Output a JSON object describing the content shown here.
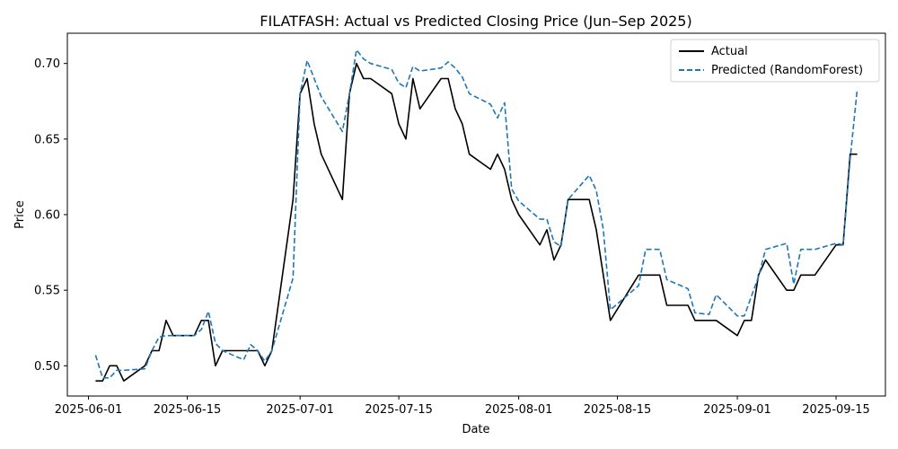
{
  "chart_data": {
    "type": "line",
    "title": "FILATFASH: Actual vs Predicted Closing Price (Jun–Sep 2025)",
    "xlabel": "Date",
    "ylabel": "Price",
    "xlim": [
      "2025-05-29",
      "2025-09-22"
    ],
    "ylim": [
      0.48,
      0.72
    ],
    "x_ticks": [
      "2025-06-01",
      "2025-06-15",
      "2025-07-01",
      "2025-07-15",
      "2025-08-01",
      "2025-08-15",
      "2025-09-01",
      "2025-09-15"
    ],
    "y_ticks": [
      0.5,
      0.55,
      0.6,
      0.65,
      0.7
    ],
    "y_tick_labels": [
      "0.50",
      "0.55",
      "0.60",
      "0.65",
      "0.70"
    ],
    "grid": false,
    "legend_position": "top-right",
    "series": [
      {
        "name": "Actual",
        "color": "#000000",
        "style": "solid",
        "points": [
          [
            "2025-06-02",
            0.49
          ],
          [
            "2025-06-03",
            0.49
          ],
          [
            "2025-06-04",
            0.5
          ],
          [
            "2025-06-05",
            0.5
          ],
          [
            "2025-06-06",
            0.49
          ],
          [
            "2025-06-09",
            0.5
          ],
          [
            "2025-06-10",
            0.51
          ],
          [
            "2025-06-11",
            0.51
          ],
          [
            "2025-06-12",
            0.53
          ],
          [
            "2025-06-13",
            0.52
          ],
          [
            "2025-06-16",
            0.52
          ],
          [
            "2025-06-17",
            0.53
          ],
          [
            "2025-06-18",
            0.53
          ],
          [
            "2025-06-19",
            0.5
          ],
          [
            "2025-06-20",
            0.51
          ],
          [
            "2025-06-23",
            0.51
          ],
          [
            "2025-06-24",
            0.51
          ],
          [
            "2025-06-25",
            0.51
          ],
          [
            "2025-06-26",
            0.5
          ],
          [
            "2025-06-27",
            0.51
          ],
          [
            "2025-06-30",
            0.61
          ],
          [
            "2025-07-01",
            0.68
          ],
          [
            "2025-07-02",
            0.69
          ],
          [
            "2025-07-03",
            0.66
          ],
          [
            "2025-07-04",
            0.64
          ],
          [
            "2025-07-07",
            0.61
          ],
          [
            "2025-07-08",
            0.68
          ],
          [
            "2025-07-09",
            0.7
          ],
          [
            "2025-07-10",
            0.69
          ],
          [
            "2025-07-11",
            0.69
          ],
          [
            "2025-07-14",
            0.68
          ],
          [
            "2025-07-15",
            0.66
          ],
          [
            "2025-07-16",
            0.65
          ],
          [
            "2025-07-17",
            0.69
          ],
          [
            "2025-07-18",
            0.67
          ],
          [
            "2025-07-21",
            0.69
          ],
          [
            "2025-07-22",
            0.69
          ],
          [
            "2025-07-23",
            0.67
          ],
          [
            "2025-07-24",
            0.66
          ],
          [
            "2025-07-25",
            0.64
          ],
          [
            "2025-07-28",
            0.63
          ],
          [
            "2025-07-29",
            0.64
          ],
          [
            "2025-07-30",
            0.63
          ],
          [
            "2025-07-31",
            0.61
          ],
          [
            "2025-08-01",
            0.6
          ],
          [
            "2025-08-04",
            0.58
          ],
          [
            "2025-08-05",
            0.59
          ],
          [
            "2025-08-06",
            0.57
          ],
          [
            "2025-08-07",
            0.58
          ],
          [
            "2025-08-08",
            0.61
          ],
          [
            "2025-08-11",
            0.61
          ],
          [
            "2025-08-12",
            0.59
          ],
          [
            "2025-08-14",
            0.53
          ],
          [
            "2025-08-18",
            0.56
          ],
          [
            "2025-08-19",
            0.56
          ],
          [
            "2025-08-20",
            0.56
          ],
          [
            "2025-08-21",
            0.56
          ],
          [
            "2025-08-22",
            0.54
          ],
          [
            "2025-08-25",
            0.54
          ],
          [
            "2025-08-26",
            0.53
          ],
          [
            "2025-08-27",
            0.53
          ],
          [
            "2025-08-28",
            0.53
          ],
          [
            "2025-08-29",
            0.53
          ],
          [
            "2025-09-01",
            0.52
          ],
          [
            "2025-09-02",
            0.53
          ],
          [
            "2025-09-03",
            0.53
          ],
          [
            "2025-09-04",
            0.56
          ],
          [
            "2025-09-05",
            0.57
          ],
          [
            "2025-09-08",
            0.55
          ],
          [
            "2025-09-09",
            0.55
          ],
          [
            "2025-09-10",
            0.56
          ],
          [
            "2025-09-11",
            0.56
          ],
          [
            "2025-09-12",
            0.56
          ],
          [
            "2025-09-15",
            0.58
          ],
          [
            "2025-09-16",
            0.58
          ],
          [
            "2025-09-17",
            0.64
          ],
          [
            "2025-09-18",
            0.64
          ]
        ]
      },
      {
        "name": "Predicted (RandomForest)",
        "color": "#1f77b4",
        "style": "dashed",
        "points": [
          [
            "2025-06-02",
            0.507
          ],
          [
            "2025-06-03",
            0.492
          ],
          [
            "2025-06-04",
            0.492
          ],
          [
            "2025-06-05",
            0.497
          ],
          [
            "2025-06-06",
            0.497
          ],
          [
            "2025-06-09",
            0.498
          ],
          [
            "2025-06-10",
            0.51
          ],
          [
            "2025-06-11",
            0.519
          ],
          [
            "2025-06-12",
            0.52
          ],
          [
            "2025-06-13",
            0.52
          ],
          [
            "2025-06-16",
            0.52
          ],
          [
            "2025-06-17",
            0.524
          ],
          [
            "2025-06-18",
            0.536
          ],
          [
            "2025-06-19",
            0.515
          ],
          [
            "2025-06-20",
            0.51
          ],
          [
            "2025-06-23",
            0.504
          ],
          [
            "2025-06-24",
            0.514
          ],
          [
            "2025-06-25",
            0.51
          ],
          [
            "2025-06-26",
            0.503
          ],
          [
            "2025-06-27",
            0.51
          ],
          [
            "2025-06-30",
            0.558
          ],
          [
            "2025-07-01",
            0.68
          ],
          [
            "2025-07-02",
            0.702
          ],
          [
            "2025-07-03",
            0.69
          ],
          [
            "2025-07-04",
            0.678
          ],
          [
            "2025-07-07",
            0.655
          ],
          [
            "2025-07-08",
            0.68
          ],
          [
            "2025-07-09",
            0.709
          ],
          [
            "2025-07-10",
            0.703
          ],
          [
            "2025-07-11",
            0.7
          ],
          [
            "2025-07-14",
            0.696
          ],
          [
            "2025-07-15",
            0.687
          ],
          [
            "2025-07-16",
            0.684
          ],
          [
            "2025-07-17",
            0.698
          ],
          [
            "2025-07-18",
            0.695
          ],
          [
            "2025-07-21",
            0.697
          ],
          [
            "2025-07-22",
            0.701
          ],
          [
            "2025-07-23",
            0.697
          ],
          [
            "2025-07-24",
            0.691
          ],
          [
            "2025-07-25",
            0.68
          ],
          [
            "2025-07-28",
            0.673
          ],
          [
            "2025-07-29",
            0.664
          ],
          [
            "2025-07-30",
            0.674
          ],
          [
            "2025-07-31",
            0.617
          ],
          [
            "2025-08-01",
            0.609
          ],
          [
            "2025-08-04",
            0.597
          ],
          [
            "2025-08-05",
            0.597
          ],
          [
            "2025-08-06",
            0.582
          ],
          [
            "2025-08-07",
            0.579
          ],
          [
            "2025-08-08",
            0.61
          ],
          [
            "2025-08-11",
            0.626
          ],
          [
            "2025-08-12",
            0.616
          ],
          [
            "2025-08-13",
            0.59
          ],
          [
            "2025-08-14",
            0.537
          ],
          [
            "2025-08-18",
            0.553
          ],
          [
            "2025-08-19",
            0.577
          ],
          [
            "2025-08-21",
            0.577
          ],
          [
            "2025-08-22",
            0.557
          ],
          [
            "2025-08-25",
            0.551
          ],
          [
            "2025-08-26",
            0.535
          ],
          [
            "2025-08-28",
            0.534
          ],
          [
            "2025-08-29",
            0.547
          ],
          [
            "2025-09-01",
            0.533
          ],
          [
            "2025-09-02",
            0.533
          ],
          [
            "2025-09-03",
            0.546
          ],
          [
            "2025-09-04",
            0.559
          ],
          [
            "2025-09-05",
            0.577
          ],
          [
            "2025-09-08",
            0.581
          ],
          [
            "2025-09-09",
            0.554
          ],
          [
            "2025-09-10",
            0.577
          ],
          [
            "2025-09-12",
            0.577
          ],
          [
            "2025-09-15",
            0.581
          ],
          [
            "2025-09-16",
            0.58
          ],
          [
            "2025-09-17",
            0.637
          ],
          [
            "2025-09-18",
            0.683
          ]
        ]
      }
    ]
  }
}
